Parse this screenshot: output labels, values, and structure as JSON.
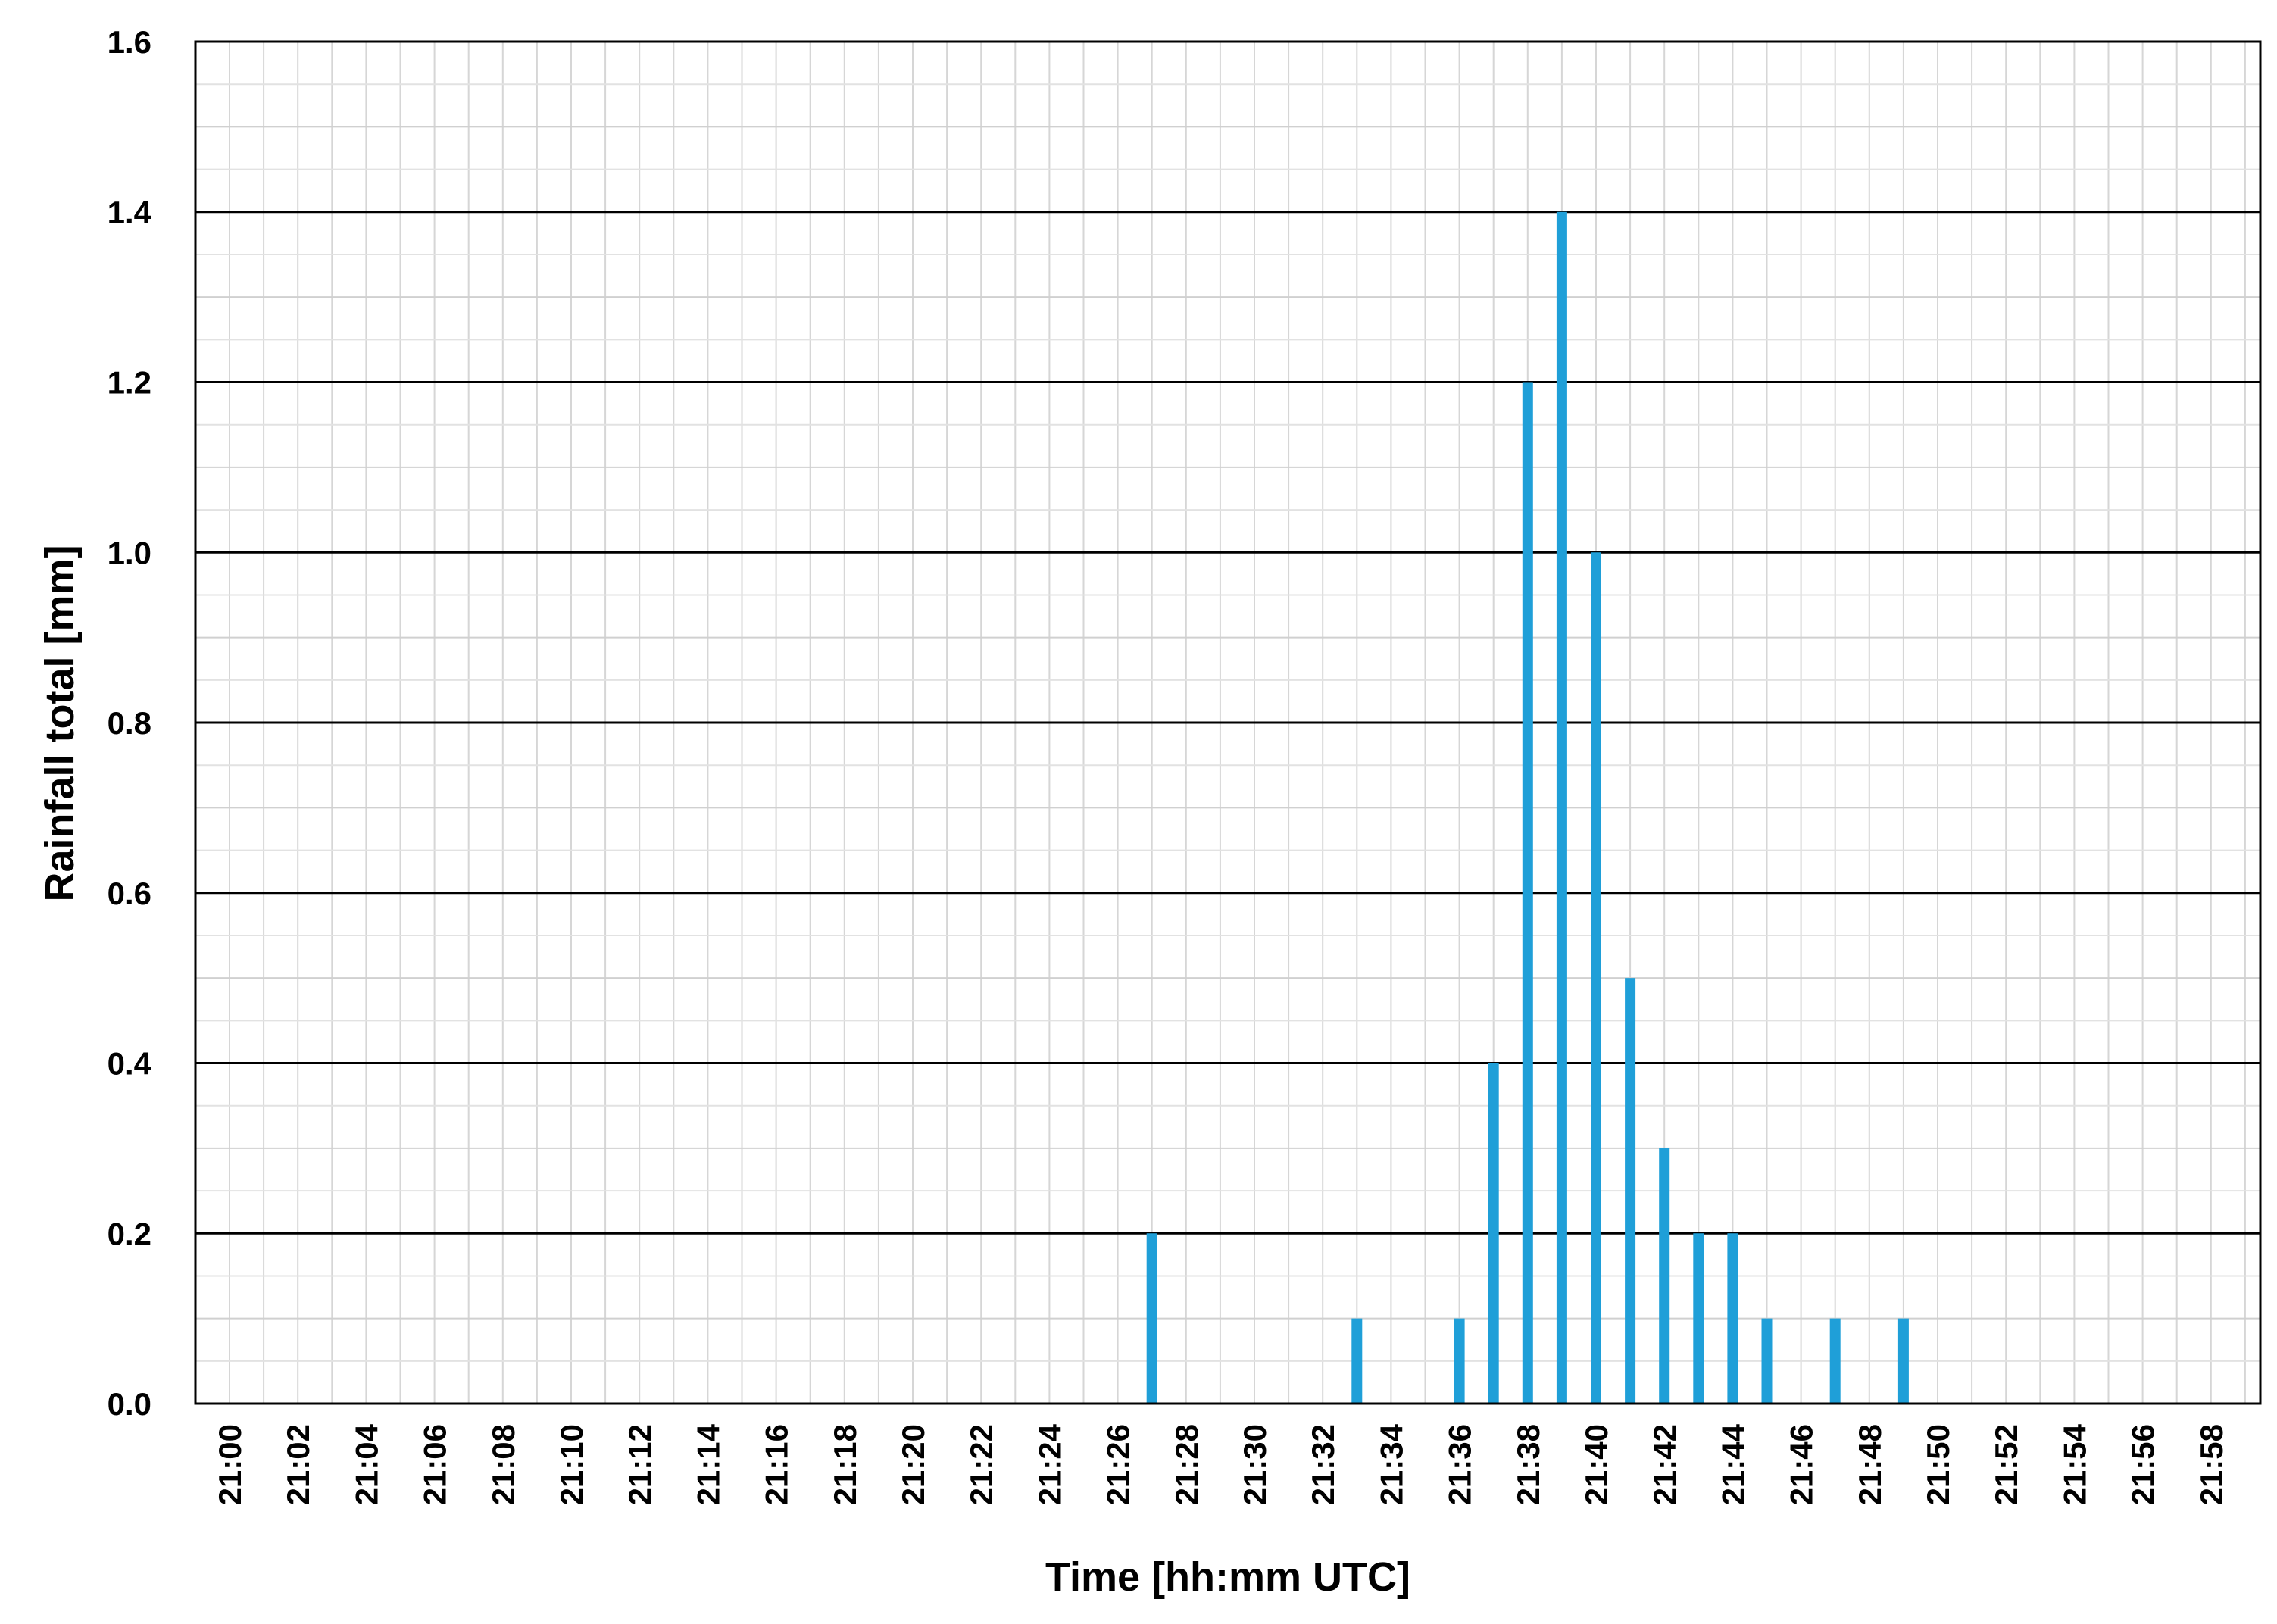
{
  "chart_data": {
    "type": "bar",
    "title": "",
    "xlabel": "Time [hh:mm UTC]",
    "ylabel": "Rainfall total [mm]",
    "ylim": [
      0,
      1.6
    ],
    "yticks": [
      "0.0",
      "0.2",
      "0.4",
      "0.6",
      "0.8",
      "1.0",
      "1.2",
      "1.4",
      "1.6"
    ],
    "xticks": [
      "21:00",
      "21:02",
      "21:04",
      "21:06",
      "21:08",
      "21:10",
      "21:12",
      "21:14",
      "21:16",
      "21:18",
      "21:20",
      "21:22",
      "21:24",
      "21:26",
      "21:28",
      "21:30",
      "21:32",
      "21:34",
      "21:36",
      "21:38",
      "21:40",
      "21:42",
      "21:44",
      "21:46",
      "21:48",
      "21:50",
      "21:52",
      "21:54",
      "21:56",
      "21:58"
    ],
    "grid": true,
    "bar_color": "#1f9fd8",
    "categories": [
      "21:00",
      "21:01",
      "21:02",
      "21:03",
      "21:04",
      "21:05",
      "21:06",
      "21:07",
      "21:08",
      "21:09",
      "21:10",
      "21:11",
      "21:12",
      "21:13",
      "21:14",
      "21:15",
      "21:16",
      "21:17",
      "21:18",
      "21:19",
      "21:20",
      "21:21",
      "21:22",
      "21:23",
      "21:24",
      "21:25",
      "21:26",
      "21:27",
      "21:28",
      "21:29",
      "21:30",
      "21:31",
      "21:32",
      "21:33",
      "21:34",
      "21:35",
      "21:36",
      "21:37",
      "21:38",
      "21:39",
      "21:40",
      "21:41",
      "21:42",
      "21:43",
      "21:44",
      "21:45",
      "21:46",
      "21:47",
      "21:48",
      "21:49",
      "21:50",
      "21:51",
      "21:52",
      "21:53",
      "21:54",
      "21:55",
      "21:56",
      "21:57",
      "21:58",
      "21:59"
    ],
    "values": [
      0,
      0,
      0,
      0,
      0,
      0,
      0,
      0,
      0,
      0,
      0,
      0,
      0,
      0,
      0,
      0,
      0,
      0,
      0,
      0,
      0,
      0,
      0,
      0,
      0,
      0,
      0,
      0.2,
      0,
      0,
      0,
      0,
      0,
      0.1,
      0,
      0,
      0.1,
      0.4,
      1.2,
      1.4,
      1.0,
      0.5,
      0.3,
      0.2,
      0.2,
      0.1,
      0,
      0.1,
      0,
      0.1,
      0,
      0,
      0,
      0,
      0,
      0,
      0,
      0,
      0,
      0
    ]
  }
}
